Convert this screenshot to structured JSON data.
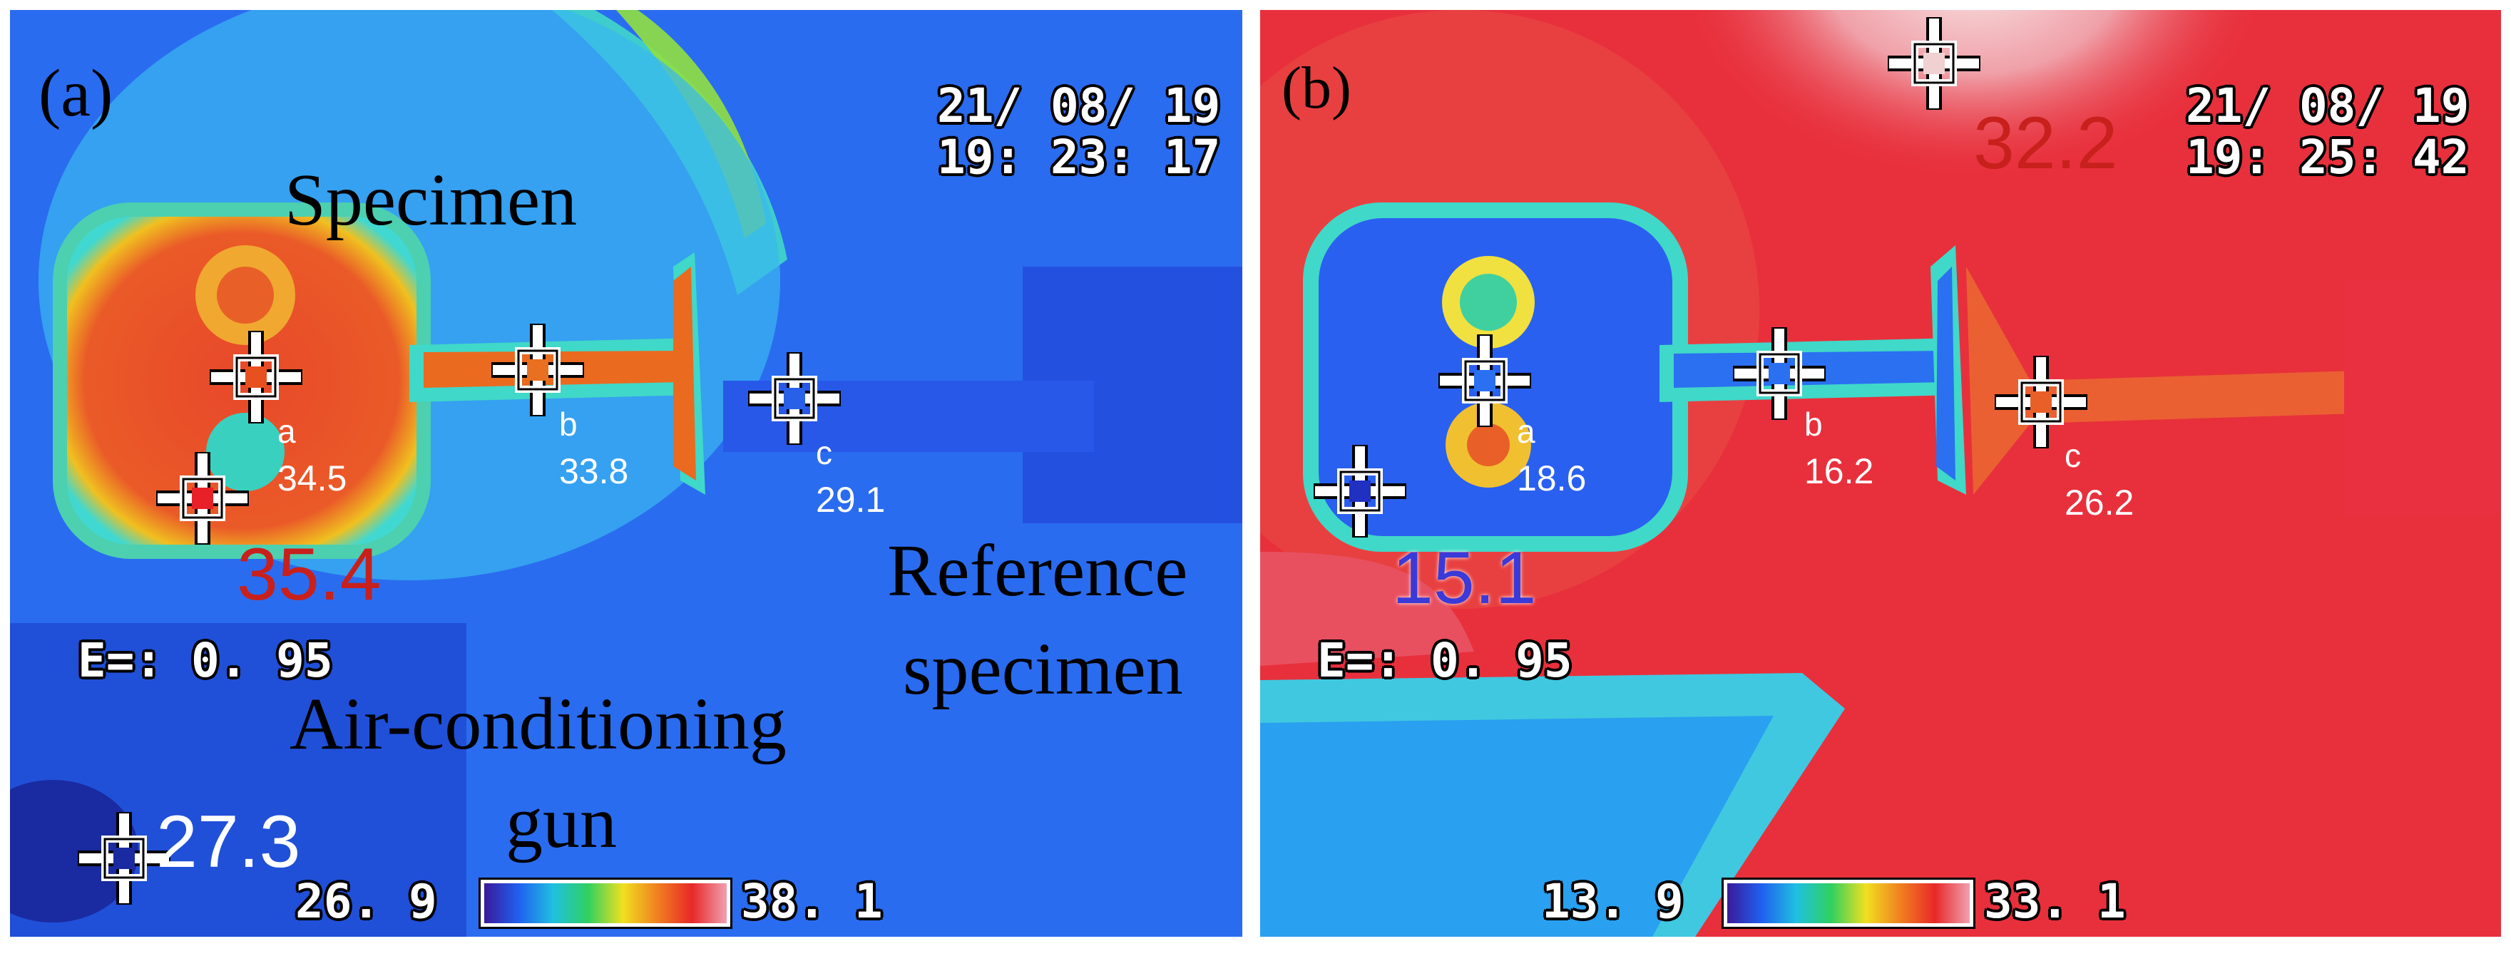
{
  "colors": {
    "panel_a_background": "#2a6cf0",
    "panel_b_background": "#e8303c",
    "hot": "#e83828",
    "cold": "#2848f0",
    "max_value_color": "#c8201c",
    "min_value_color_a": "#ffffff",
    "min_value_color_b": "#3a3ad8"
  },
  "panel_a": {
    "label": "(a)",
    "date": "21/ 08/ 19",
    "time": "19: 23: 17",
    "annotations": {
      "specimen": "Specimen",
      "reference_line1": "Reference",
      "reference_line2": "specimen",
      "gun_line1": "Air-conditioning",
      "gun_line2": "gun"
    },
    "points": [
      {
        "letter": "a",
        "value": "34.5"
      },
      {
        "letter": "b",
        "value": "33.8"
      },
      {
        "letter": "c",
        "value": "29.1"
      }
    ],
    "max_value": "35.4",
    "min_value": "27.3",
    "emissivity": "E=: 0. 95",
    "scale_min": "26. 9",
    "scale_max": "38. 1"
  },
  "panel_b": {
    "label": "(b)",
    "date": "21/ 08/ 19",
    "time": "19: 25: 42",
    "points": [
      {
        "letter": "a",
        "value": "18.6"
      },
      {
        "letter": "b",
        "value": "16.2"
      },
      {
        "letter": "c",
        "value": "26.2"
      }
    ],
    "max_value": "32.2",
    "min_value": "15.1",
    "emissivity": "E=: 0. 95",
    "scale_min": "13. 9",
    "scale_max": "33. 1"
  }
}
